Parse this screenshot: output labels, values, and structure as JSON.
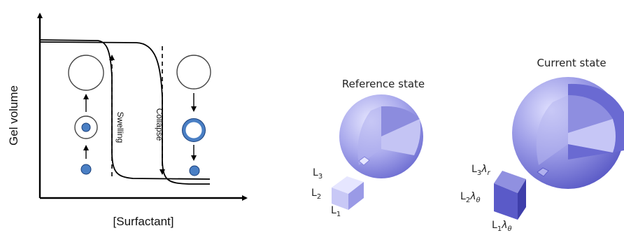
{
  "left_panel": {
    "axis_x_label": "[Surfactant]",
    "axis_y_label": "Gel volume",
    "swelling_label": "Swelling",
    "collapse_label": "Collapse"
  },
  "right_panel": {
    "reference_title": "Reference state",
    "current_title": "Current state",
    "ref_dims": {
      "l3": "L",
      "l3_sub": "3",
      "l2": "L",
      "l2_sub": "2",
      "l1": "L",
      "l1_sub": "1"
    },
    "cur_dims": {
      "l3": "L",
      "l3_sub": "3",
      "l3_factor": "λ",
      "l3_factor_sub": "r",
      "l2": "L",
      "l2_sub": "2",
      "l2_factor": "λ",
      "l2_factor_sub": "θ",
      "l1": "L",
      "l1_sub": "1",
      "l1_factor": "λ",
      "l1_factor_sub": "θ"
    }
  },
  "colors": {
    "dot_fill": "#4a7fc4",
    "dot_stroke": "#1a3f7a",
    "sphere_light": "#d4d4f8",
    "sphere_dark": "#7070d0",
    "cube_light": "#e2e2ff",
    "cube_dark": "#7a7ad8"
  }
}
